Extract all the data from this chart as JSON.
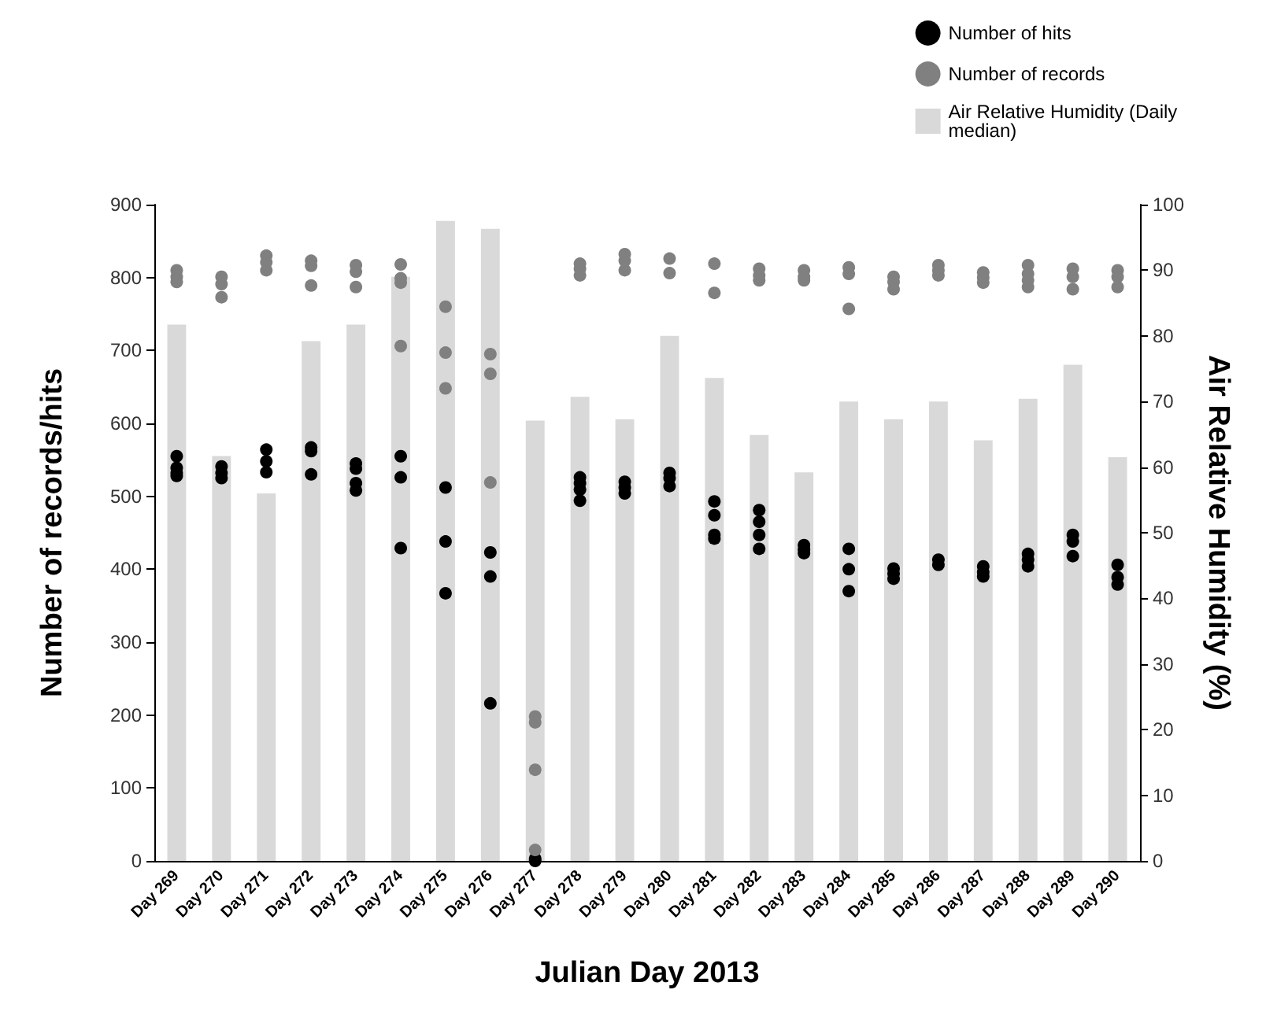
{
  "chart_data": {
    "type": "scatter",
    "xlabel": "Julian Day 2013",
    "ylabel": "Number of records/hits",
    "y2label": "Air Relative Humidity (%)",
    "categories": [
      "Day 269",
      "Day 270",
      "Day 271",
      "Day 272",
      "Day 273",
      "Day 274",
      "Day 275",
      "Day 276",
      "Day 277",
      "Day 278",
      "Day 279",
      "Day 280",
      "Day 281",
      "Day 282",
      "Day 283",
      "Day 284",
      "Day 285",
      "Day 286",
      "Day 287",
      "Day 288",
      "Day 289",
      "Day 290"
    ],
    "series": [
      {
        "name": "Number of hits",
        "color": "#000000",
        "x": [
          "Day 269",
          "Day 269",
          "Day 269",
          "Day 269",
          "Day 270",
          "Day 270",
          "Day 270",
          "Day 271",
          "Day 271",
          "Day 271",
          "Day 272",
          "Day 272",
          "Day 272",
          "Day 273",
          "Day 273",
          "Day 273",
          "Day 273",
          "Day 274",
          "Day 274",
          "Day 274",
          "Day 275",
          "Day 275",
          "Day 275",
          "Day 276",
          "Day 276",
          "Day 276",
          "Day 277",
          "Day 277",
          "Day 278",
          "Day 278",
          "Day 278",
          "Day 278",
          "Day 279",
          "Day 279",
          "Day 279",
          "Day 280",
          "Day 280",
          "Day 280",
          "Day 281",
          "Day 281",
          "Day 281",
          "Day 281",
          "Day 282",
          "Day 282",
          "Day 282",
          "Day 282",
          "Day 283",
          "Day 283",
          "Day 283",
          "Day 284",
          "Day 284",
          "Day 284",
          "Day 285",
          "Day 285",
          "Day 285",
          "Day 286",
          "Day 286",
          "Day 287",
          "Day 287",
          "Day 287",
          "Day 288",
          "Day 288",
          "Day 288",
          "Day 289",
          "Day 289",
          "Day 289",
          "Day 290",
          "Day 290",
          "Day 290"
        ],
        "values": [
          555,
          539,
          532,
          528,
          541,
          532,
          525,
          564,
          548,
          533,
          567,
          562,
          530,
          545,
          538,
          518,
          508,
          555,
          526,
          429,
          512,
          438,
          367,
          423,
          390,
          216,
          3,
          0,
          526,
          518,
          509,
          494,
          520,
          512,
          504,
          532,
          525,
          514,
          493,
          474,
          447,
          442,
          481,
          465,
          447,
          428,
          433,
          427,
          422,
          428,
          400,
          370,
          401,
          394,
          387,
          413,
          406,
          404,
          396,
          390,
          421,
          413,
          404,
          447,
          438,
          418,
          406,
          389,
          379
        ]
      },
      {
        "name": "Number of records",
        "color": "#808080",
        "x": [
          "Day 269",
          "Day 269",
          "Day 269",
          "Day 270",
          "Day 270",
          "Day 270",
          "Day 271",
          "Day 271",
          "Day 271",
          "Day 272",
          "Day 272",
          "Day 272",
          "Day 273",
          "Day 273",
          "Day 273",
          "Day 274",
          "Day 274",
          "Day 274",
          "Day 274",
          "Day 275",
          "Day 275",
          "Day 275",
          "Day 276",
          "Day 276",
          "Day 276",
          "Day 277",
          "Day 277",
          "Day 277",
          "Day 277",
          "Day 278",
          "Day 278",
          "Day 278",
          "Day 279",
          "Day 279",
          "Day 279",
          "Day 280",
          "Day 280",
          "Day 281",
          "Day 281",
          "Day 282",
          "Day 282",
          "Day 282",
          "Day 283",
          "Day 283",
          "Day 283",
          "Day 284",
          "Day 284",
          "Day 284",
          "Day 285",
          "Day 285",
          "Day 285",
          "Day 286",
          "Day 286",
          "Day 286",
          "Day 287",
          "Day 287",
          "Day 287",
          "Day 288",
          "Day 288",
          "Day 288",
          "Day 288",
          "Day 289",
          "Day 289",
          "Day 289",
          "Day 290",
          "Day 290",
          "Day 290"
        ],
        "values": [
          810,
          801,
          794,
          801,
          791,
          773,
          830,
          821,
          810,
          823,
          816,
          789,
          817,
          808,
          787,
          818,
          799,
          793,
          706,
          760,
          697,
          648,
          695,
          668,
          519,
          198,
          190,
          125,
          15,
          819,
          812,
          803,
          832,
          823,
          810,
          826,
          806,
          819,
          779,
          812,
          803,
          796,
          810,
          801,
          796,
          814,
          805,
          757,
          801,
          794,
          784,
          817,
          810,
          803,
          807,
          800,
          793,
          817,
          805,
          796,
          787,
          812,
          801,
          784,
          810,
          801,
          787
        ]
      },
      {
        "name": "Air Relative Humidity (Daily median)",
        "type": "bar",
        "axis": "y2",
        "color": "#d9d9d9",
        "values": [
          81.7,
          61.7,
          56,
          79.2,
          81.7,
          89,
          97.5,
          96.3,
          67.1,
          70.7,
          67.3,
          80,
          73.6,
          64.9,
          59.2,
          70,
          67.3,
          70,
          64.1,
          70.4,
          75.6,
          61.5
        ]
      }
    ],
    "ylim": [
      0,
      900
    ],
    "yticks": [
      0,
      100,
      200,
      300,
      400,
      500,
      600,
      700,
      800,
      900
    ],
    "y2lim": [
      0,
      100
    ],
    "y2ticks": [
      0,
      10,
      20,
      30,
      40,
      50,
      60,
      70,
      80,
      90,
      100
    ],
    "marker": "circle",
    "legend": "top right",
    "grid": false
  }
}
